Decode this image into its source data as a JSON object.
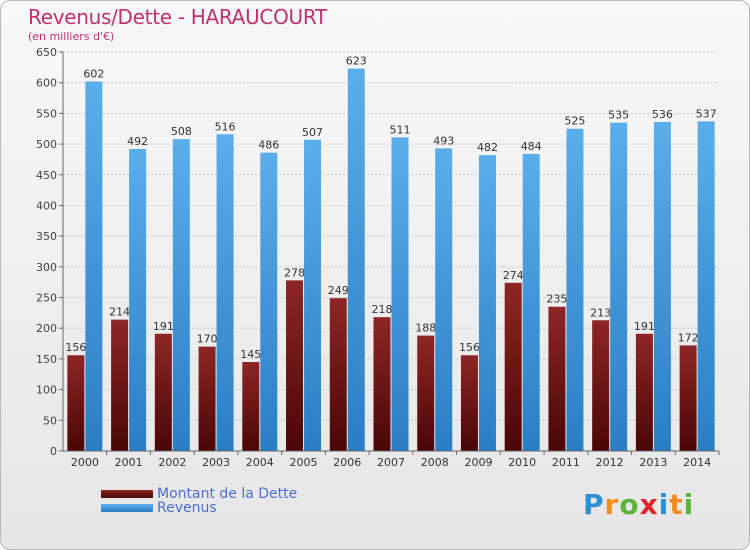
{
  "header": {
    "title": "Revenus/Dette - HARAUCOURT",
    "subtitle": "(en milliers d'€)"
  },
  "chart_data": {
    "type": "bar",
    "title": "Revenus/Dette - HARAUCOURT",
    "ylabel": "(en milliers d'€)",
    "xlabel": "",
    "ylim": [
      0,
      650
    ],
    "yticks": [
      0,
      50,
      100,
      150,
      200,
      250,
      300,
      350,
      400,
      450,
      500,
      550,
      600,
      650
    ],
    "grid": true,
    "categories": [
      "2000",
      "2001",
      "2002",
      "2003",
      "2004",
      "2005",
      "2006",
      "2007",
      "2008",
      "2009",
      "2010",
      "2011",
      "2012",
      "2013",
      "2014"
    ],
    "series": [
      {
        "name": "Montant de la Dette",
        "color": "#7d1b1b",
        "values": [
          156,
          214,
          191,
          170,
          145,
          278,
          249,
          218,
          188,
          156,
          274,
          235,
          213,
          191,
          172
        ]
      },
      {
        "name": "Revenus",
        "color": "#3d98e0",
        "values": [
          602,
          492,
          508,
          516,
          486,
          507,
          623,
          511,
          493,
          482,
          484,
          525,
          535,
          536,
          537
        ]
      }
    ]
  },
  "legend": {
    "items": [
      {
        "label": "Montant de la Dette",
        "color": "#7d1b1b"
      },
      {
        "label": "Revenus",
        "color": "#3d98e0"
      }
    ]
  },
  "logo": {
    "text": "Proxiti",
    "letters": [
      {
        "char": "P",
        "color": "#2e8fd6"
      },
      {
        "char": "r",
        "color": "#f28c1e"
      },
      {
        "char": "o",
        "color": "#5bb33c"
      },
      {
        "char": "x",
        "color": "#e8232a"
      },
      {
        "char": "i",
        "color": "#2e8fd6"
      },
      {
        "char": "t",
        "color": "#f28c1e"
      },
      {
        "char": "i",
        "color": "#5bb33c"
      }
    ]
  }
}
